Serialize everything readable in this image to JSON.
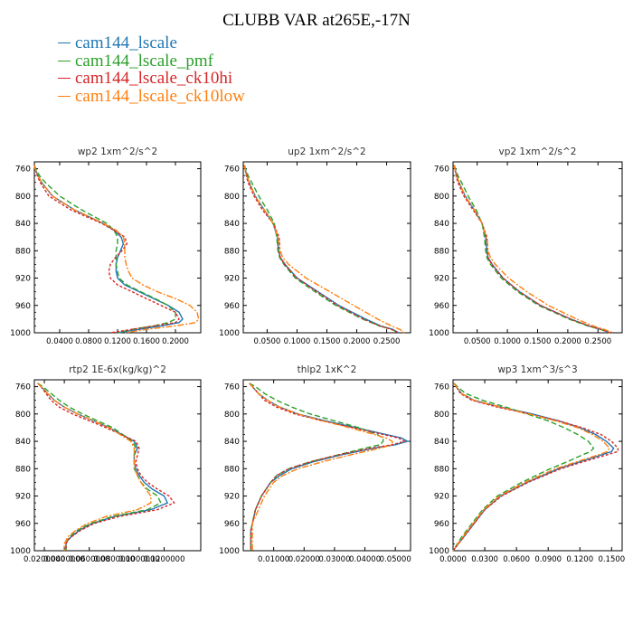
{
  "title": "CLUBB VAR at265E,-17N",
  "legend": [
    {
      "name": "cam144_lscale",
      "color": "#1f77b4"
    },
    {
      "name": "cam144_lscale_pmf",
      "color": "#2ca02c"
    },
    {
      "name": "cam144_lscale_ck10hi",
      "color": "#d62728"
    },
    {
      "name": "cam144_lscale_ck10low",
      "color": "#ff7f0e"
    }
  ],
  "colors": {
    "axes": "#000000",
    "panel_title": "#333333"
  },
  "chart_data": [
    {
      "type": "line",
      "title": "wp2   1xm^2/s^2",
      "y_ticks": [
        760,
        800,
        840,
        880,
        920,
        960,
        1000
      ],
      "ylim": [
        750,
        1000
      ],
      "xlim": [
        0.005,
        0.235
      ],
      "x_ticks": [
        "0.0400",
        "0.0800",
        "0.1200",
        "0.1600",
        "0.2000"
      ],
      "x_tick_values": [
        0.04,
        0.08,
        0.12,
        0.16,
        0.2
      ],
      "y": [
        755,
        760,
        770,
        780,
        800,
        820,
        840,
        850,
        860,
        870,
        880,
        890,
        900,
        910,
        920,
        930,
        940,
        950,
        960,
        970,
        980,
        985,
        990,
        995,
        1000
      ],
      "series": [
        {
          "name": "cam144_lscale",
          "color": "#1f77b4",
          "dash": "",
          "values": [
            0.005,
            0.006,
            0.01,
            0.015,
            0.03,
            0.06,
            0.1,
            0.115,
            0.125,
            0.128,
            0.124,
            0.12,
            0.118,
            0.118,
            0.12,
            0.13,
            0.15,
            0.17,
            0.19,
            0.205,
            0.21,
            0.205,
            0.18,
            0.15,
            0.12
          ]
        },
        {
          "name": "cam144_lscale_pmf",
          "color": "#2ca02c",
          "dash": "6,3",
          "values": [
            0.005,
            0.007,
            0.012,
            0.02,
            0.04,
            0.07,
            0.105,
            0.115,
            0.12,
            0.12,
            0.118,
            0.118,
            0.118,
            0.12,
            0.122,
            0.133,
            0.152,
            0.172,
            0.19,
            0.2,
            0.2,
            0.19,
            0.17,
            0.14,
            0.12
          ]
        },
        {
          "name": "cam144_lscale_ck10hi",
          "color": "#d62728",
          "dash": "3,2",
          "values": [
            0.005,
            0.006,
            0.009,
            0.013,
            0.025,
            0.055,
            0.098,
            0.115,
            0.13,
            0.133,
            0.126,
            0.117,
            0.11,
            0.108,
            0.11,
            0.12,
            0.14,
            0.16,
            0.18,
            0.2,
            0.205,
            0.2,
            0.17,
            0.14,
            0.11
          ]
        },
        {
          "name": "cam144_lscale_ck10low",
          "color": "#ff7f0e",
          "dash": "7,2,2,2",
          "values": [
            0.005,
            0.006,
            0.01,
            0.015,
            0.03,
            0.06,
            0.1,
            0.118,
            0.128,
            0.13,
            0.13,
            0.13,
            0.132,
            0.135,
            0.14,
            0.155,
            0.175,
            0.2,
            0.22,
            0.23,
            0.232,
            0.228,
            0.2,
            0.16,
            0.13
          ]
        }
      ]
    },
    {
      "type": "line",
      "title": "up2   1xm^2/s^2",
      "y_ticks": [
        760,
        800,
        840,
        880,
        920,
        960,
        1000
      ],
      "ylim": [
        750,
        1000
      ],
      "xlim": [
        0.01,
        0.29
      ],
      "x_ticks": [
        "0.0500",
        "0.1000",
        "0.1500",
        "0.2000",
        "0.2500"
      ],
      "x_tick_values": [
        0.05,
        0.1,
        0.15,
        0.2,
        0.25
      ],
      "y": [
        755,
        760,
        770,
        780,
        800,
        820,
        840,
        860,
        870,
        880,
        890,
        900,
        920,
        940,
        960,
        980,
        990,
        995,
        1000
      ],
      "series": [
        {
          "name": "cam144_lscale",
          "color": "#1f77b4",
          "dash": "",
          "values": [
            0.012,
            0.013,
            0.016,
            0.02,
            0.03,
            0.045,
            0.06,
            0.067,
            0.068,
            0.069,
            0.072,
            0.08,
            0.1,
            0.135,
            0.17,
            0.215,
            0.24,
            0.26,
            0.27
          ]
        },
        {
          "name": "cam144_lscale_pmf",
          "color": "#2ca02c",
          "dash": "6,3",
          "values": [
            0.012,
            0.014,
            0.018,
            0.024,
            0.036,
            0.05,
            0.062,
            0.066,
            0.067,
            0.068,
            0.071,
            0.078,
            0.097,
            0.13,
            0.165,
            0.21,
            0.238,
            0.258,
            0.27
          ]
        },
        {
          "name": "cam144_lscale_ck10hi",
          "color": "#d62728",
          "dash": "3,2",
          "values": [
            0.012,
            0.013,
            0.015,
            0.018,
            0.028,
            0.042,
            0.06,
            0.07,
            0.071,
            0.07,
            0.072,
            0.079,
            0.1,
            0.133,
            0.168,
            0.212,
            0.238,
            0.258,
            0.27
          ]
        },
        {
          "name": "cam144_lscale_ck10low",
          "color": "#ff7f0e",
          "dash": "7,2,2,2",
          "values": [
            0.012,
            0.013,
            0.016,
            0.02,
            0.03,
            0.045,
            0.06,
            0.068,
            0.07,
            0.072,
            0.076,
            0.086,
            0.115,
            0.155,
            0.195,
            0.235,
            0.258,
            0.272,
            0.28
          ]
        }
      ]
    },
    {
      "type": "line",
      "title": "vp2   1xm^2/s^2",
      "y_ticks": [
        760,
        800,
        840,
        880,
        920,
        960,
        1000
      ],
      "ylim": [
        750,
        1000
      ],
      "xlim": [
        0.01,
        0.29
      ],
      "x_ticks": [
        "0.0500",
        "0.1000",
        "0.1500",
        "0.2000",
        "0.2500"
      ],
      "x_tick_values": [
        0.05,
        0.1,
        0.15,
        0.2,
        0.25
      ],
      "y": [
        755,
        760,
        770,
        780,
        800,
        820,
        840,
        860,
        870,
        880,
        890,
        900,
        920,
        940,
        960,
        980,
        990,
        995,
        1000
      ],
      "series": [
        {
          "name": "cam144_lscale",
          "color": "#1f77b4",
          "dash": "",
          "values": [
            0.012,
            0.013,
            0.016,
            0.02,
            0.03,
            0.045,
            0.058,
            0.064,
            0.065,
            0.066,
            0.068,
            0.075,
            0.093,
            0.12,
            0.155,
            0.205,
            0.235,
            0.255,
            0.27
          ]
        },
        {
          "name": "cam144_lscale_pmf",
          "color": "#2ca02c",
          "dash": "6,3",
          "values": [
            0.012,
            0.014,
            0.018,
            0.024,
            0.035,
            0.048,
            0.058,
            0.062,
            0.063,
            0.064,
            0.066,
            0.072,
            0.09,
            0.117,
            0.152,
            0.202,
            0.233,
            0.254,
            0.27
          ]
        },
        {
          "name": "cam144_lscale_ck10hi",
          "color": "#d62728",
          "dash": "3,2",
          "values": [
            0.012,
            0.013,
            0.015,
            0.018,
            0.028,
            0.043,
            0.058,
            0.066,
            0.067,
            0.067,
            0.068,
            0.074,
            0.093,
            0.12,
            0.155,
            0.205,
            0.235,
            0.255,
            0.27
          ]
        },
        {
          "name": "cam144_lscale_ck10low",
          "color": "#ff7f0e",
          "dash": "7,2,2,2",
          "values": [
            0.012,
            0.013,
            0.016,
            0.02,
            0.03,
            0.045,
            0.058,
            0.065,
            0.067,
            0.068,
            0.072,
            0.08,
            0.102,
            0.132,
            0.168,
            0.215,
            0.242,
            0.26,
            0.275
          ]
        }
      ]
    },
    {
      "type": "line",
      "title": "rtp2   1E-6x(kg/kg)^2",
      "y_ticks": [
        760,
        800,
        840,
        880,
        920,
        960,
        1000
      ],
      "ylim": [
        750,
        1000
      ],
      "xlim": [
        0.0,
        1.0
      ],
      "x_ticks": [
        "0.0200000",
        "0.0400000",
        "0.0600000",
        "0.0800000",
        "0.1000000",
        "0.1200000"
      ],
      "x_tick_values": [
        0.06,
        0.18,
        0.33,
        0.48,
        0.63,
        0.78
      ],
      "y": [
        755,
        760,
        770,
        780,
        790,
        800,
        820,
        840,
        850,
        860,
        870,
        880,
        890,
        900,
        910,
        920,
        930,
        940,
        950,
        960,
        970,
        980,
        985,
        990,
        995,
        1000
      ],
      "series": [
        {
          "name": "cam144_lscale",
          "color": "#1f77b4",
          "dash": "",
          "values": [
            0.02,
            0.04,
            0.08,
            0.12,
            0.18,
            0.26,
            0.45,
            0.6,
            0.62,
            0.6,
            0.6,
            0.61,
            0.63,
            0.66,
            0.71,
            0.78,
            0.8,
            0.7,
            0.48,
            0.35,
            0.27,
            0.22,
            0.2,
            0.19,
            0.19,
            0.19
          ]
        },
        {
          "name": "cam144_lscale_pmf",
          "color": "#2ca02c",
          "dash": "6,3",
          "values": [
            0.02,
            0.05,
            0.1,
            0.15,
            0.21,
            0.29,
            0.47,
            0.59,
            0.61,
            0.6,
            0.6,
            0.6,
            0.62,
            0.64,
            0.68,
            0.74,
            0.76,
            0.68,
            0.47,
            0.34,
            0.26,
            0.21,
            0.2,
            0.19,
            0.19,
            0.19
          ]
        },
        {
          "name": "cam144_lscale_ck10hi",
          "color": "#d62728",
          "dash": "3,2",
          "values": [
            0.02,
            0.04,
            0.07,
            0.1,
            0.15,
            0.23,
            0.43,
            0.61,
            0.63,
            0.62,
            0.61,
            0.62,
            0.64,
            0.68,
            0.74,
            0.81,
            0.84,
            0.74,
            0.51,
            0.36,
            0.28,
            0.22,
            0.2,
            0.19,
            0.19,
            0.19
          ]
        },
        {
          "name": "cam144_lscale_ck10low",
          "color": "#ff7f0e",
          "dash": "7,2,2,2",
          "values": [
            0.02,
            0.04,
            0.08,
            0.12,
            0.18,
            0.26,
            0.45,
            0.58,
            0.6,
            0.6,
            0.6,
            0.6,
            0.62,
            0.64,
            0.67,
            0.7,
            0.7,
            0.62,
            0.43,
            0.32,
            0.25,
            0.2,
            0.19,
            0.18,
            0.18,
            0.18
          ]
        }
      ]
    },
    {
      "type": "line",
      "title": "thlp2   1xK^2",
      "y_ticks": [
        760,
        800,
        840,
        880,
        920,
        960,
        1000
      ],
      "ylim": [
        750,
        1000
      ],
      "xlim": [
        0.0,
        0.055
      ],
      "x_ticks": [
        "0.01000",
        "0.02000",
        "0.03000",
        "0.04000",
        "0.05000"
      ],
      "x_tick_values": [
        0.01,
        0.02,
        0.03,
        0.04,
        0.05
      ],
      "y": [
        755,
        760,
        770,
        780,
        790,
        800,
        810,
        820,
        830,
        835,
        840,
        845,
        850,
        860,
        870,
        880,
        890,
        900,
        920,
        940,
        960,
        970,
        980,
        990,
        1000
      ],
      "series": [
        {
          "name": "cam144_lscale",
          "color": "#1f77b4",
          "dash": "",
          "values": [
            0.002,
            0.003,
            0.005,
            0.008,
            0.012,
            0.018,
            0.027,
            0.037,
            0.047,
            0.052,
            0.054,
            0.05,
            0.043,
            0.032,
            0.023,
            0.016,
            0.012,
            0.009,
            0.006,
            0.004,
            0.003,
            0.0025,
            0.0025,
            0.0025,
            0.0025
          ]
        },
        {
          "name": "cam144_lscale_pmf",
          "color": "#2ca02c",
          "dash": "6,3",
          "values": [
            0.002,
            0.004,
            0.007,
            0.011,
            0.016,
            0.022,
            0.03,
            0.038,
            0.044,
            0.046,
            0.046,
            0.045,
            0.04,
            0.031,
            0.022,
            0.015,
            0.011,
            0.009,
            0.006,
            0.004,
            0.003,
            0.0025,
            0.0025,
            0.0025,
            0.0025
          ]
        },
        {
          "name": "cam144_lscale_ck10hi",
          "color": "#d62728",
          "dash": "3,2",
          "values": [
            0.002,
            0.003,
            0.005,
            0.007,
            0.011,
            0.017,
            0.026,
            0.036,
            0.046,
            0.051,
            0.053,
            0.049,
            0.042,
            0.031,
            0.022,
            0.015,
            0.011,
            0.009,
            0.006,
            0.004,
            0.003,
            0.0025,
            0.0025,
            0.0025,
            0.0025
          ]
        },
        {
          "name": "cam144_lscale_ck10low",
          "color": "#ff7f0e",
          "dash": "7,2,2,2",
          "values": [
            0.002,
            0.003,
            0.005,
            0.008,
            0.012,
            0.018,
            0.026,
            0.035,
            0.043,
            0.047,
            0.049,
            0.049,
            0.045,
            0.035,
            0.026,
            0.018,
            0.013,
            0.01,
            0.007,
            0.005,
            0.003,
            0.003,
            0.003,
            0.003,
            0.003
          ]
        }
      ]
    },
    {
      "type": "line",
      "title": "wp3   1xm^3/s^3",
      "y_ticks": [
        760,
        800,
        840,
        880,
        920,
        960,
        1000
      ],
      "ylim": [
        750,
        1000
      ],
      "xlim": [
        0.0,
        0.16
      ],
      "x_ticks": [
        "0.0000",
        "0.0300",
        "0.0600",
        "0.0900",
        "0.1200",
        "0.1500"
      ],
      "x_tick_values": [
        0.0,
        0.03,
        0.06,
        0.09,
        0.12,
        0.15
      ],
      "y": [
        755,
        760,
        770,
        780,
        790,
        800,
        810,
        820,
        830,
        840,
        850,
        855,
        860,
        870,
        880,
        900,
        920,
        940,
        960,
        980,
        1000
      ],
      "series": [
        {
          "name": "cam144_lscale",
          "color": "#1f77b4",
          "dash": "",
          "values": [
            0.001,
            0.003,
            0.008,
            0.02,
            0.045,
            0.075,
            0.1,
            0.12,
            0.135,
            0.145,
            0.152,
            0.15,
            0.14,
            0.12,
            0.1,
            0.07,
            0.045,
            0.03,
            0.02,
            0.01,
            0.0
          ]
        },
        {
          "name": "cam144_lscale_pmf",
          "color": "#2ca02c",
          "dash": "6,3",
          "values": [
            0.001,
            0.004,
            0.012,
            0.028,
            0.05,
            0.07,
            0.09,
            0.105,
            0.118,
            0.128,
            0.133,
            0.13,
            0.122,
            0.108,
            0.092,
            0.065,
            0.042,
            0.028,
            0.018,
            0.008,
            0.0
          ]
        },
        {
          "name": "cam144_lscale_ck10hi",
          "color": "#d62728",
          "dash": "3,2",
          "values": [
            0.001,
            0.003,
            0.007,
            0.018,
            0.042,
            0.072,
            0.1,
            0.122,
            0.14,
            0.15,
            0.156,
            0.156,
            0.145,
            0.123,
            0.102,
            0.071,
            0.046,
            0.03,
            0.02,
            0.01,
            0.0
          ]
        },
        {
          "name": "cam144_lscale_ck10low",
          "color": "#ff7f0e",
          "dash": "7,2,2,2",
          "values": [
            0.001,
            0.003,
            0.008,
            0.02,
            0.045,
            0.072,
            0.097,
            0.118,
            0.132,
            0.142,
            0.148,
            0.146,
            0.137,
            0.117,
            0.097,
            0.068,
            0.044,
            0.029,
            0.019,
            0.009,
            0.0
          ]
        }
      ]
    }
  ]
}
